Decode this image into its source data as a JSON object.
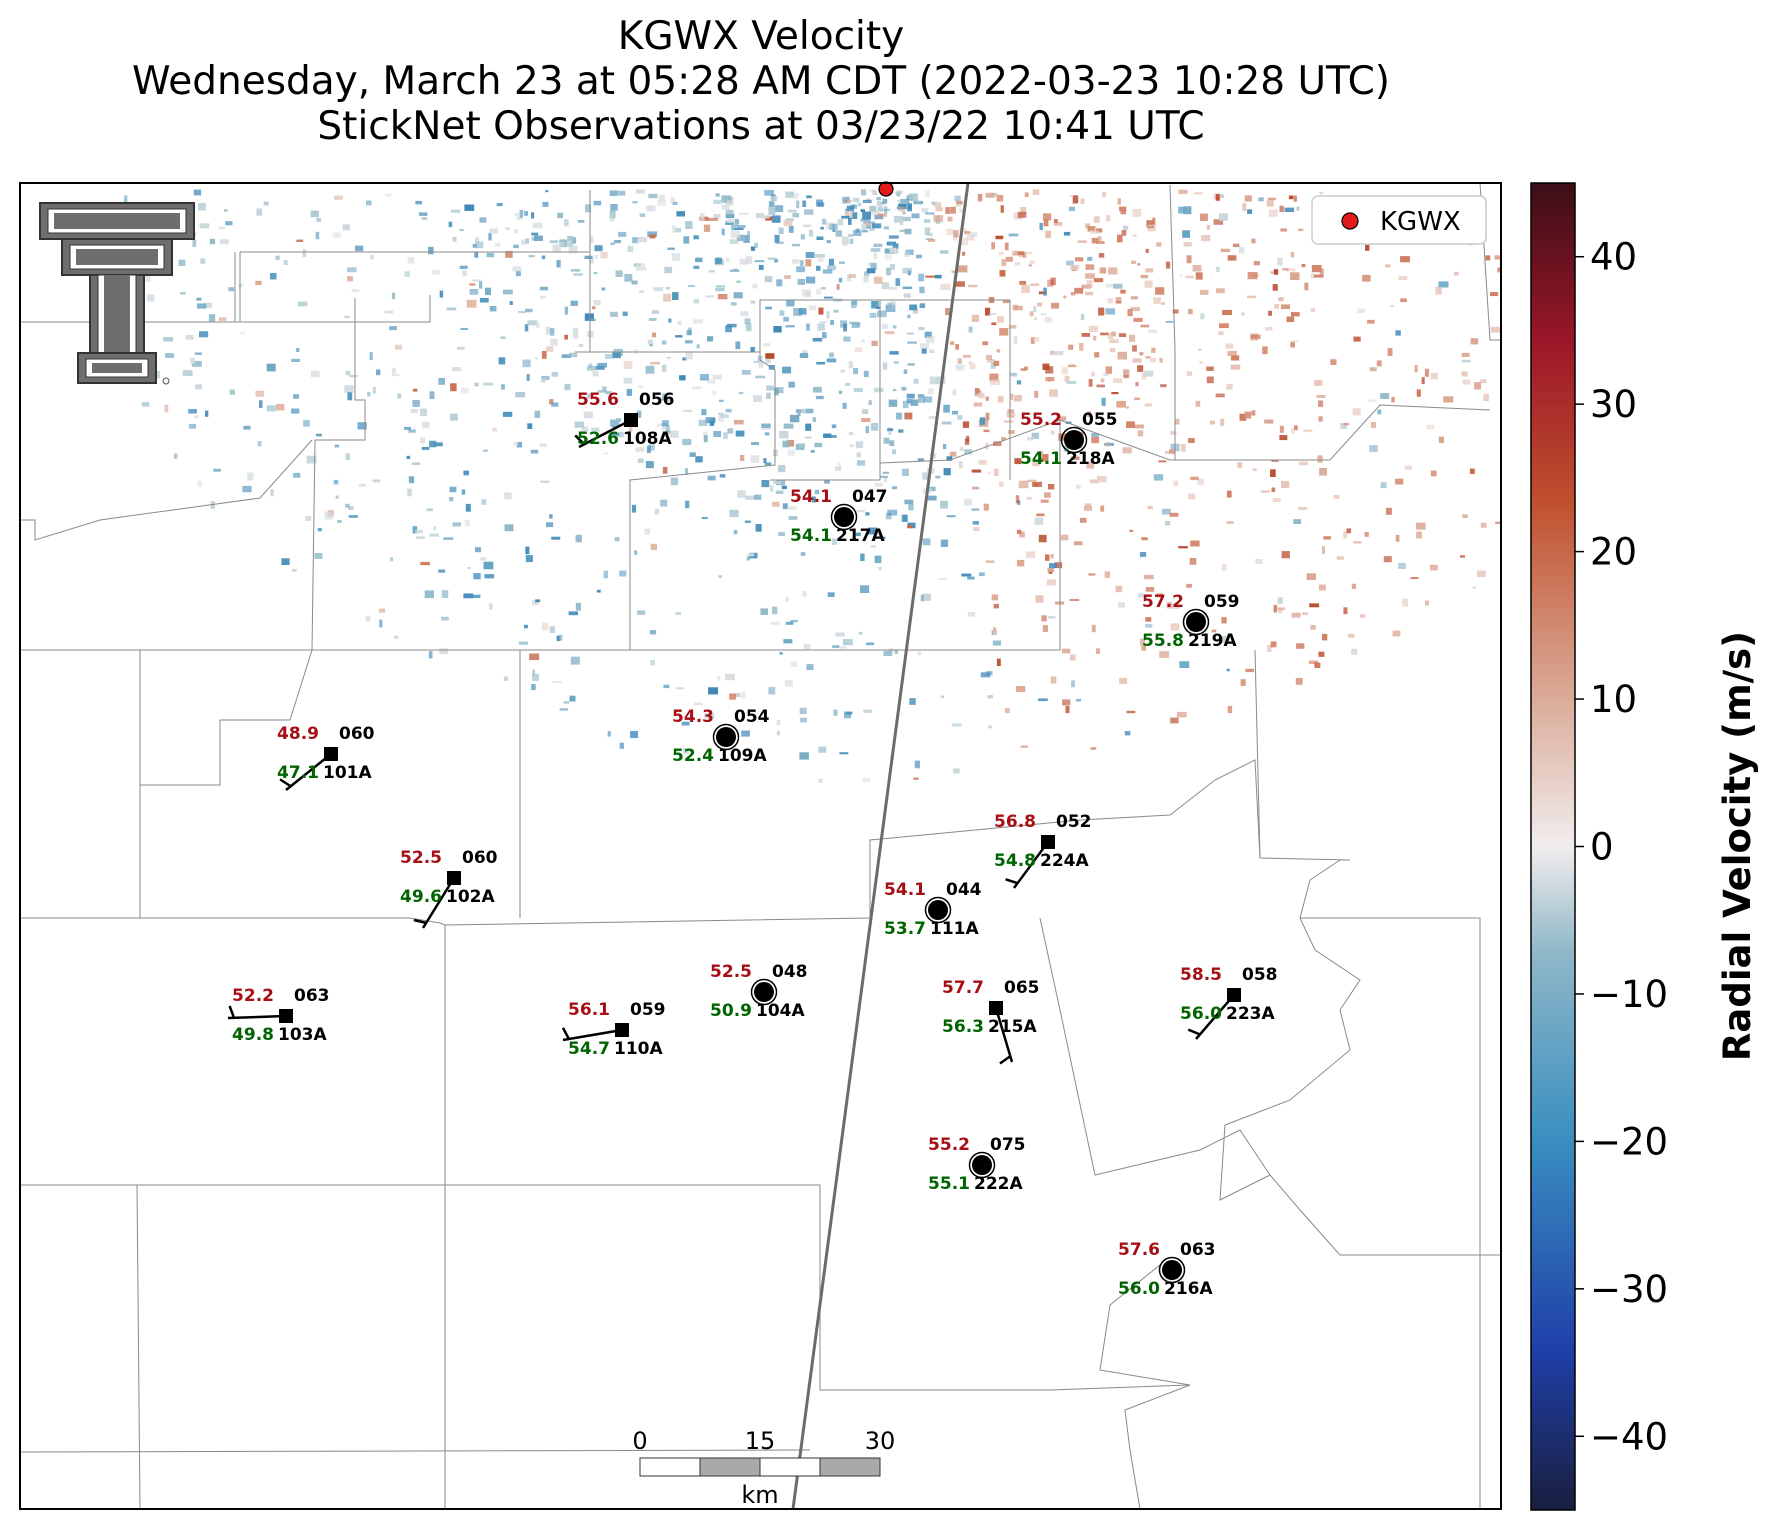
{
  "titles": {
    "line1": "KGWX Velocity",
    "line2": "Wednesday, March 23 at 05:28 AM CDT (2022-03-23 10:28 UTC)",
    "line3": "StickNet Observations at 03/23/22 10:41 UTC"
  },
  "legend": {
    "label": "KGWX",
    "marker_color": "#e31a1c"
  },
  "colorbar": {
    "label": "Radial Velocity (m/s)",
    "min": -45,
    "max": 45,
    "ticks": [
      "40",
      "30",
      "20",
      "10",
      "0",
      "−10",
      "−20",
      "−30",
      "−40"
    ],
    "tick_values": [
      40,
      30,
      20,
      10,
      0,
      -10,
      -20,
      -30,
      -40
    ]
  },
  "scale_bar": {
    "labels": [
      "0",
      "15",
      "30"
    ],
    "unit": "km"
  },
  "stations": [
    {
      "id": "108A",
      "temp": "55.6",
      "dew": "52.6",
      "dir": "056",
      "shape": "square",
      "barb": true
    },
    {
      "id": "218A",
      "temp": "55.2",
      "dew": "54.1",
      "dir": "055",
      "shape": "circle",
      "barb": false
    },
    {
      "id": "217A",
      "temp": "54.1",
      "dew": "54.1",
      "dir": "047",
      "shape": "circle",
      "barb": false
    },
    {
      "id": "219A",
      "temp": "57.2",
      "dew": "55.8",
      "dir": "059",
      "shape": "circle",
      "barb": false
    },
    {
      "id": "109A",
      "temp": "54.3",
      "dew": "52.4",
      "dir": "054",
      "shape": "circle",
      "barb": false
    },
    {
      "id": "101A",
      "temp": "48.9",
      "dew": "47.1",
      "dir": "060",
      "shape": "square",
      "barb": true
    },
    {
      "id": "224A",
      "temp": "56.8",
      "dew": "54.8",
      "dir": "052",
      "shape": "square",
      "barb": true
    },
    {
      "id": "102A",
      "temp": "52.5",
      "dew": "49.6",
      "dir": "060",
      "shape": "square",
      "barb": true
    },
    {
      "id": "111A",
      "temp": "54.1",
      "dew": "53.7",
      "dir": "044",
      "shape": "circle",
      "barb": false
    },
    {
      "id": "104A",
      "temp": "52.5",
      "dew": "50.9",
      "dir": "048",
      "shape": "circle",
      "barb": false
    },
    {
      "id": "223A",
      "temp": "58.5",
      "dew": "56.0",
      "dir": "058",
      "shape": "square",
      "barb": true
    },
    {
      "id": "215A",
      "temp": "57.7",
      "dew": "56.3",
      "dir": "065",
      "shape": "square",
      "barb": true
    },
    {
      "id": "103A",
      "temp": "52.2",
      "dew": "49.8",
      "dir": "063",
      "shape": "square",
      "barb": true
    },
    {
      "id": "110A",
      "temp": "56.1",
      "dew": "54.7",
      "dir": "059",
      "shape": "square",
      "barb": true
    },
    {
      "id": "222A",
      "temp": "55.2",
      "dew": "55.1",
      "dir": "075",
      "shape": "circle",
      "barb": false
    },
    {
      "id": "216A",
      "temp": "57.6",
      "dew": "56.0",
      "dir": "063",
      "shape": "circle",
      "barb": false
    }
  ]
}
